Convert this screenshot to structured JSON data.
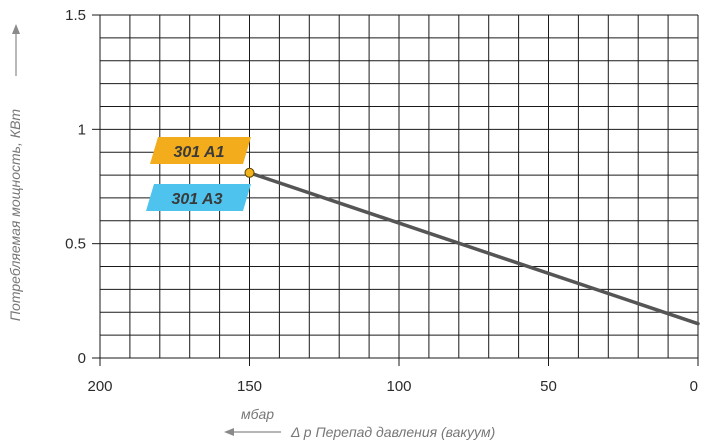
{
  "chart_data": {
    "type": "line",
    "x_reversed": true,
    "xlim": [
      0,
      200
    ],
    "ylim": [
      0,
      1.5
    ],
    "grid": true,
    "x_ticks": [
      200,
      150,
      100,
      50,
      0
    ],
    "x_tick_labels": [
      "200",
      "150",
      "100",
      "50",
      "0"
    ],
    "y_ticks": [
      0,
      0.5,
      1,
      1.5
    ],
    "y_tick_labels": [
      "0",
      "0.5",
      "1",
      "1.5"
    ],
    "x_unit": "мбар",
    "xlabel": "Δ р Перепад давления (вакуум)",
    "ylabel": "Потребляемая мощность, КВт",
    "series": [
      {
        "name": "301 A1 / 301 A3",
        "color": "#555555",
        "x": [
          150,
          0
        ],
        "y": [
          0.81,
          0.15
        ]
      }
    ],
    "start_marker": {
      "x": 150,
      "y": 0.81,
      "color": "#f2b21d"
    },
    "labels": [
      {
        "text": "301 A1",
        "color": "#f2ac1c"
      },
      {
        "text": "301 A3",
        "color": "#4dc3ee"
      }
    ]
  }
}
